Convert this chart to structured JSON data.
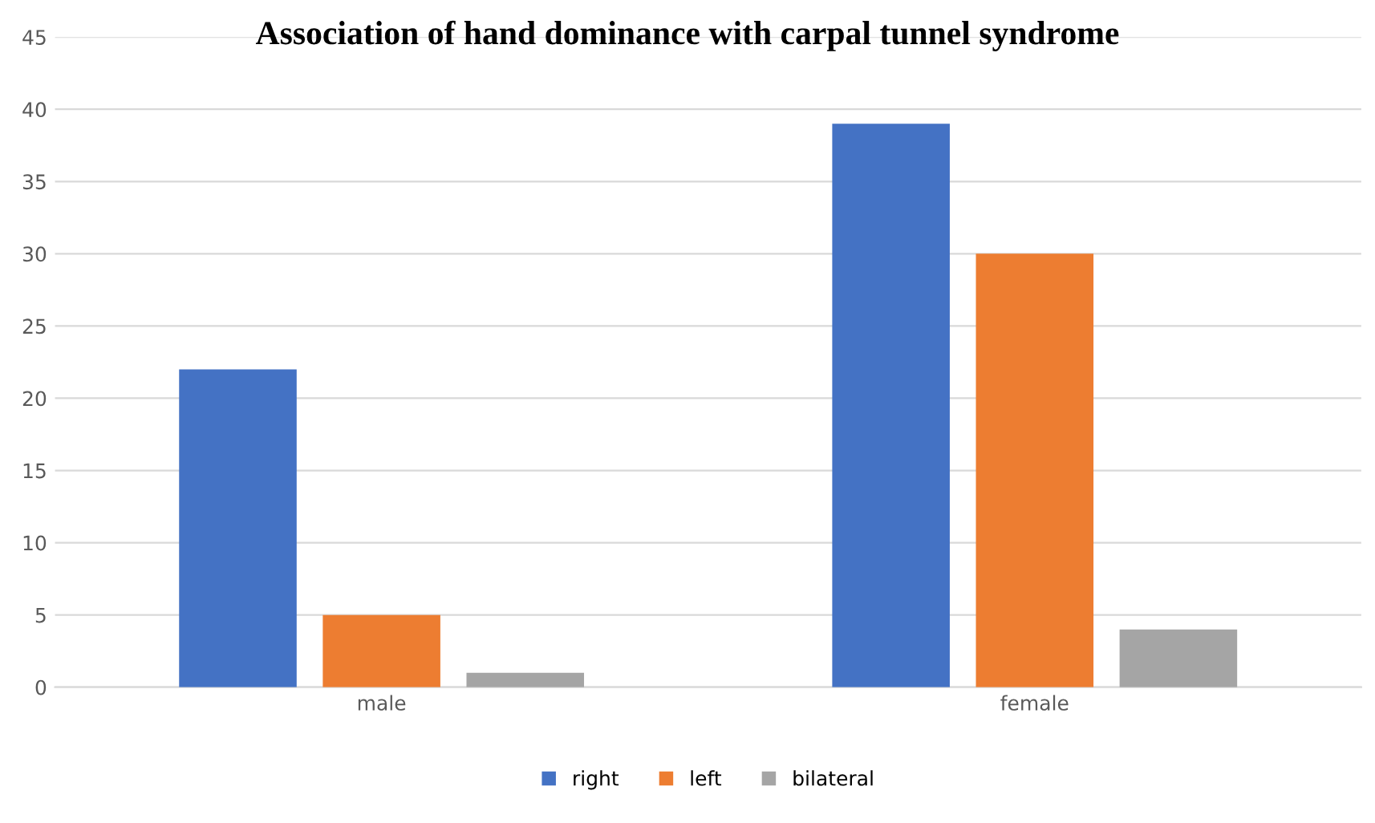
{
  "chart_data": {
    "type": "bar",
    "title": "Association of hand dominance with carpal tunnel syndrome",
    "categories": [
      "male",
      "female"
    ],
    "series": [
      {
        "name": "right",
        "color": "#4472c4",
        "values": [
          22,
          39
        ]
      },
      {
        "name": "left",
        "color": "#ed7d31",
        "values": [
          5,
          30
        ]
      },
      {
        "name": "bilateral",
        "color": "#a5a5a5",
        "values": [
          1,
          4
        ]
      }
    ],
    "ylim": [
      0,
      45
    ],
    "yticks": [
      0,
      5,
      10,
      15,
      20,
      25,
      30,
      35,
      40,
      45
    ],
    "grid": "y",
    "legend": "bottom"
  }
}
